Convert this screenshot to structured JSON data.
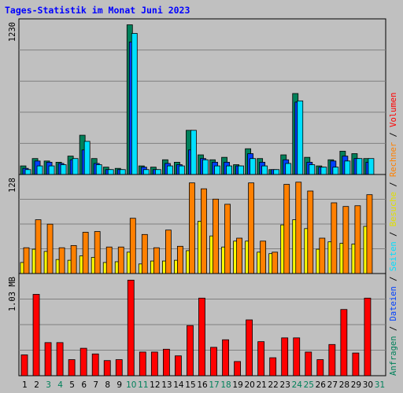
{
  "title": "Tages-Statistik im Monat Juni 2023",
  "colors": {
    "background": "#c0c0c0",
    "title": "#0000ff",
    "anfragen": "#00805a",
    "dateien": "#0040ff",
    "seiten": "#00e0ff",
    "besuche": "#ffff00",
    "rechner": "#ff8000",
    "volumen": "#ff0000",
    "weekend_label": "#00805a"
  },
  "legend_right": [
    {
      "text": "Anfragen",
      "color": "#00805a"
    },
    {
      "text": " / ",
      "color": "#000000"
    },
    {
      "text": "Dateien",
      "color": "#0040ff"
    },
    {
      "text": " / ",
      "color": "#000000"
    },
    {
      "text": "Seiten",
      "color": "#00e0ff"
    },
    {
      "text": " / ",
      "color": "#000000"
    },
    {
      "text": "Besuche",
      "color": "#e0e000"
    },
    {
      "text": " / ",
      "color": "#000000"
    },
    {
      "text": "Rechner",
      "color": "#ff8000"
    },
    {
      "text": " / ",
      "color": "#000000"
    },
    {
      "text": "Volumen",
      "color": "#ff0000"
    }
  ],
  "chart_data": [
    {
      "type": "bar",
      "panel": "top",
      "ymax_label": "1230",
      "ylim": [
        0,
        1230
      ],
      "categories": [
        "1",
        "2",
        "3",
        "4",
        "5",
        "6",
        "7",
        "8",
        "9",
        "10",
        "11",
        "12",
        "13",
        "14",
        "15",
        "16",
        "17",
        "18",
        "19",
        "20",
        "21",
        "22",
        "23",
        "24",
        "25",
        "26",
        "27",
        "28",
        "29",
        "30",
        "31"
      ],
      "weekend_days": [
        3,
        4,
        10,
        11,
        17,
        18,
        24,
        25,
        31
      ],
      "series": [
        {
          "key": "anfragen",
          "values": [
            70,
            130,
            110,
            100,
            150,
            320,
            130,
            60,
            50,
            1220,
            70,
            60,
            120,
            100,
            360,
            160,
            120,
            140,
            80,
            210,
            130,
            40,
            160,
            660,
            140,
            70,
            120,
            190,
            170,
            130,
            0
          ]
        },
        {
          "key": "dateien",
          "values": [
            50,
            110,
            100,
            90,
            120,
            200,
            90,
            40,
            40,
            1080,
            60,
            40,
            90,
            80,
            200,
            130,
            100,
            100,
            70,
            170,
            100,
            40,
            120,
            590,
            100,
            60,
            110,
            150,
            130,
            100,
            0
          ]
        },
        {
          "key": "seiten",
          "values": [
            40,
            70,
            70,
            80,
            130,
            270,
            80,
            40,
            40,
            1150,
            40,
            40,
            70,
            70,
            360,
            120,
            70,
            70,
            70,
            130,
            70,
            40,
            90,
            600,
            80,
            60,
            60,
            110,
            130,
            130,
            0
          ]
        }
      ]
    },
    {
      "type": "bar",
      "panel": "middle",
      "ymax_label": "128",
      "ylim": [
        0,
        128
      ],
      "categories": [
        "1",
        "2",
        "3",
        "4",
        "5",
        "6",
        "7",
        "8",
        "9",
        "10",
        "11",
        "12",
        "13",
        "14",
        "15",
        "16",
        "17",
        "18",
        "19",
        "20",
        "21",
        "22",
        "23",
        "24",
        "25",
        "26",
        "27",
        "28",
        "29",
        "30",
        "31"
      ],
      "series": [
        {
          "key": "besuche",
          "values": [
            15,
            33,
            30,
            19,
            18,
            24,
            22,
            15,
            16,
            29,
            13,
            17,
            17,
            18,
            31,
            71,
            51,
            36,
            44,
            44,
            29,
            27,
            66,
            73,
            61,
            33,
            43,
            41,
            40,
            64,
            0
          ]
        },
        {
          "key": "rechner",
          "values": [
            35,
            73,
            67,
            35,
            38,
            56,
            57,
            36,
            36,
            75,
            53,
            35,
            59,
            37,
            123,
            115,
            101,
            94,
            48,
            123,
            44,
            29,
            121,
            124,
            112,
            48,
            96,
            91,
            92,
            107,
            0
          ]
        }
      ]
    },
    {
      "type": "bar",
      "panel": "bottom",
      "ymax_label": "1.03 MB",
      "ylim": [
        0,
        1.03
      ],
      "categories": [
        "1",
        "2",
        "3",
        "4",
        "5",
        "6",
        "7",
        "8",
        "9",
        "10",
        "11",
        "12",
        "13",
        "14",
        "15",
        "16",
        "17",
        "18",
        "19",
        "20",
        "21",
        "22",
        "23",
        "24",
        "25",
        "26",
        "27",
        "28",
        "29",
        "30",
        "31"
      ],
      "series": [
        {
          "key": "volumen",
          "values": [
            0.22,
            0.86,
            0.35,
            0.35,
            0.17,
            0.29,
            0.23,
            0.16,
            0.17,
            1.01,
            0.25,
            0.25,
            0.28,
            0.21,
            0.53,
            0.82,
            0.3,
            0.38,
            0.15,
            0.59,
            0.36,
            0.19,
            0.4,
            0.4,
            0.25,
            0.17,
            0.33,
            0.7,
            0.24,
            0.82,
            0
          ]
        }
      ]
    }
  ]
}
